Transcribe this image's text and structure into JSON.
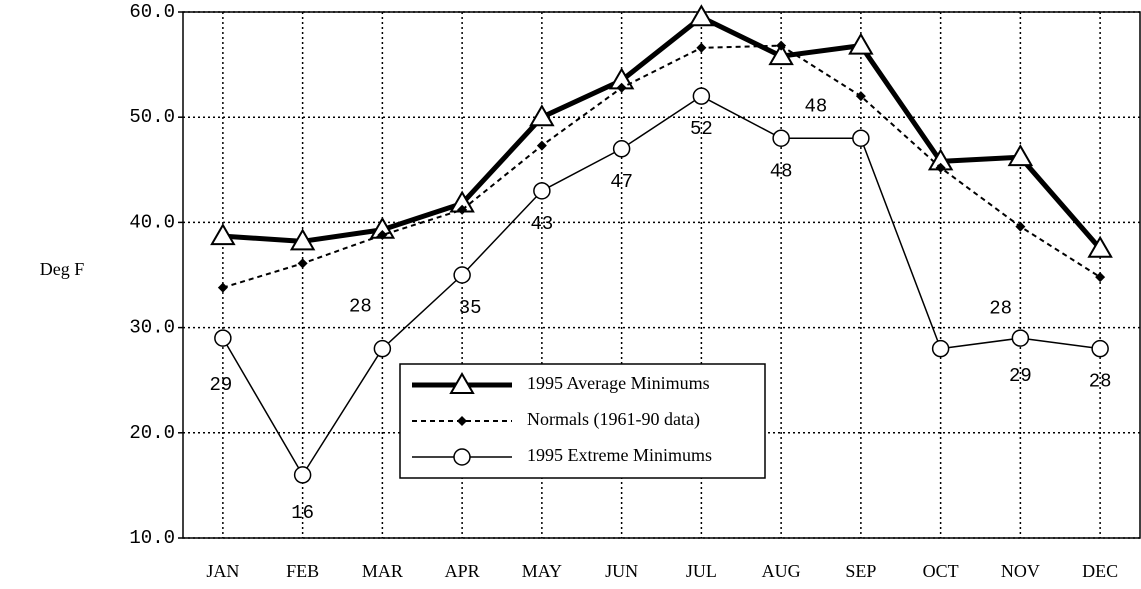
{
  "chart_data": {
    "type": "line",
    "y_label": "Deg F",
    "categories": [
      "JAN",
      "FEB",
      "MAR",
      "APR",
      "MAY",
      "JUN",
      "JUL",
      "AUG",
      "SEP",
      "OCT",
      "NOV",
      "DEC"
    ],
    "series": [
      {
        "name": "1995 Average Minimums",
        "color": "#000000",
        "marker": "triangle",
        "style": "thick",
        "values": [
          38.7,
          38.2,
          39.3,
          41.8,
          50.0,
          53.5,
          59.5,
          55.8,
          56.8,
          45.8,
          46.2,
          37.5
        ]
      },
      {
        "name": "Normals (1961-90 data)",
        "color": "#000000",
        "marker": "diamond",
        "style": "dashed",
        "values": [
          33.8,
          36.1,
          38.8,
          41.2,
          47.3,
          52.8,
          56.6,
          56.8,
          52.0,
          45.2,
          39.6,
          34.8
        ]
      },
      {
        "name": "1995 Extreme Minimums",
        "color": "#000000",
        "marker": "circle",
        "style": "thin",
        "values": [
          29,
          16,
          28,
          35,
          43,
          47,
          52,
          48,
          48,
          28,
          29,
          28
        ],
        "data_labels": true
      }
    ],
    "ylim": [
      10,
      60
    ],
    "yticks": [
      {
        "value": 10,
        "label": "10.0"
      },
      {
        "value": 20,
        "label": "20.0"
      },
      {
        "value": 30,
        "label": "30.0"
      },
      {
        "value": 40,
        "label": "40.0"
      },
      {
        "value": 50,
        "label": "50.0"
      },
      {
        "value": 60,
        "label": "60.0"
      }
    ],
    "grid": true,
    "legend": "inside-bottom-center"
  }
}
